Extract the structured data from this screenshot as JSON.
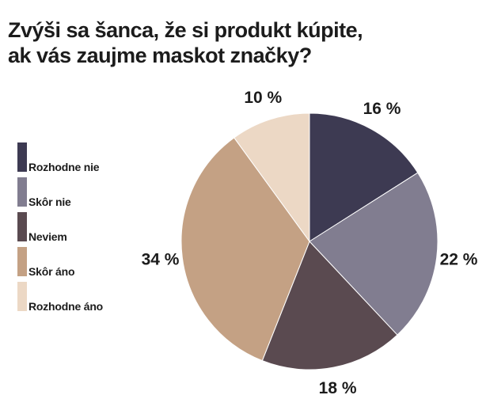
{
  "chart_data": {
    "type": "pie",
    "title_lines": [
      "Zvýši sa šanca, že si produkt kúpite,",
      "ak vás zaujme maskot značky?"
    ],
    "slices": [
      {
        "name": "Rozhodne nie",
        "value": 16,
        "label": "16 %",
        "color": "#3d3a52"
      },
      {
        "name": "Skôr nie",
        "value": 22,
        "label": "22 %",
        "color": "#817d90"
      },
      {
        "name": "Neviem",
        "value": 18,
        "label": "18 %",
        "color": "#5a4a50"
      },
      {
        "name": "Skôr áno",
        "value": 34,
        "label": "34 %",
        "color": "#c4a184"
      },
      {
        "name": "Rozhodne áno",
        "value": 10,
        "label": "10 %",
        "color": "#ecd8c5"
      }
    ],
    "legend_position": "left",
    "start_angle": "12-o'clock",
    "direction": "clockwise"
  }
}
